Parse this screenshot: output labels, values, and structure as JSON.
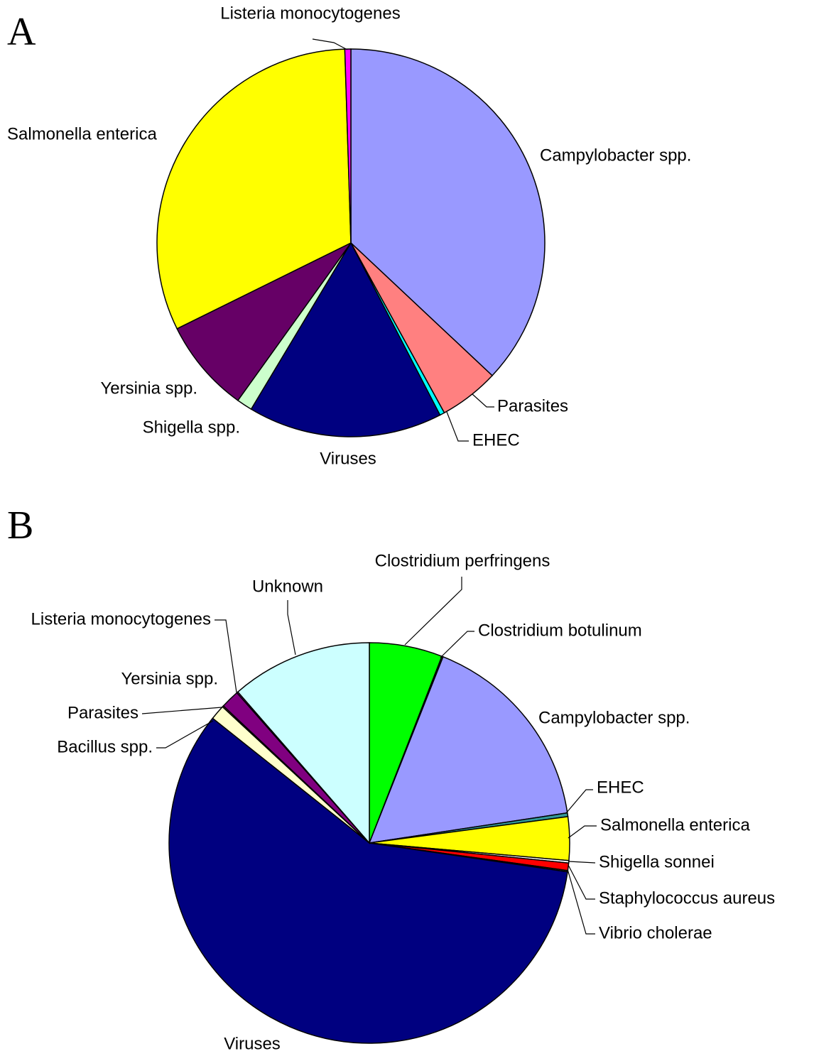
{
  "chart_data": [
    {
      "type": "pie",
      "title": "A",
      "categories": [
        "Campylobacter spp.",
        "Parasites",
        "EHEC",
        "Viruses",
        "Shigella spp.",
        "Yersinia spp.",
        "Salmonella enterica",
        "Listeria monocytogenes"
      ],
      "values": [
        37.0,
        5.0,
        0.4,
        16.2,
        1.3,
        7.8,
        31.8,
        0.5
      ],
      "colors": [
        "#9999ff",
        "#ff8080",
        "#00ffff",
        "#000080",
        "#ccffcc",
        "#660066",
        "#ffff00",
        "#ff00ff"
      ]
    },
    {
      "type": "pie",
      "title": "B",
      "categories": [
        "Clostridium perfringens",
        "Clostridium botulinum",
        "Campylobacter spp.",
        "EHEC",
        "Salmonella enterica",
        "Shigella sonnei",
        "Staphylococcus aureus",
        "Vibrio cholerae",
        "Viruses",
        "Bacillus spp.",
        "Parasites",
        "Yersinia spp.",
        "Listeria monocytogenes",
        "Unknown"
      ],
      "values": [
        5.9,
        0.1,
        16.6,
        0.3,
        3.5,
        0.2,
        0.6,
        0.1,
        58.4,
        1.2,
        0.1,
        1.5,
        0.1,
        11.4
      ],
      "colors": [
        "#00ff00",
        "#339966",
        "#9999ff",
        "#339999",
        "#ffff00",
        "#ffffff",
        "#ff0000",
        "#808080",
        "#000080",
        "#ffffcc",
        "#ff8080",
        "#800080",
        "#ff00ff",
        "#ccffff"
      ]
    }
  ]
}
